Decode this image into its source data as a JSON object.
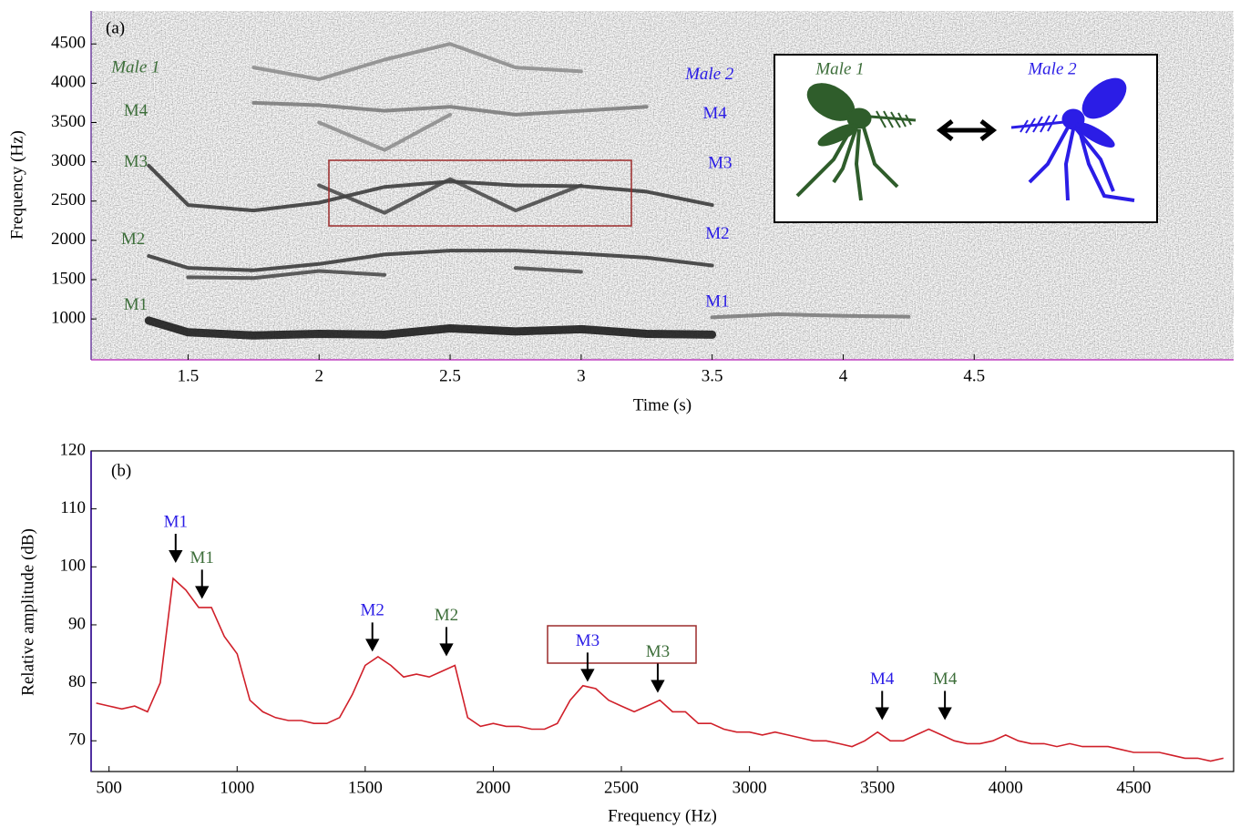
{
  "chart_data": [
    {
      "type": "spectrogram",
      "label": "(a)",
      "x_label": "Time (s)",
      "y_label": "Frequency (Hz)",
      "xlim": [
        1.13,
        5.49
      ],
      "ylim": [
        480,
        4920
      ],
      "xticks": [
        1.5,
        2,
        2.5,
        3,
        3.5,
        4,
        4.5
      ],
      "yticks": [
        1000,
        1500,
        2000,
        2500,
        3000,
        3500,
        4000,
        4500
      ],
      "x": [
        1.35,
        1.5,
        1.75,
        2.0,
        2.25,
        2.5,
        2.75,
        3.0,
        3.25,
        3.5,
        3.75,
        4.0,
        4.25
      ],
      "series": [
        {
          "color": "#111111",
          "values": [
            980,
            830,
            790,
            810,
            800,
            880,
            840,
            870,
            810,
            800,
            null,
            null,
            null
          ]
        },
        {
          "color": "#777777",
          "values": [
            null,
            null,
            null,
            null,
            null,
            null,
            null,
            null,
            null,
            1020,
            1060,
            1040,
            1030
          ]
        },
        {
          "color": "#333333",
          "values": [
            1800,
            1650,
            1620,
            1700,
            1820,
            1870,
            1870,
            1830,
            1780,
            1680,
            null,
            null,
            null
          ]
        },
        {
          "color": "#444444",
          "values": [
            null,
            1530,
            1520,
            1610,
            1560,
            null,
            1650,
            1600,
            null,
            null,
            null,
            null,
            null
          ]
        },
        {
          "color": "#333333",
          "values": [
            2950,
            2450,
            2380,
            2480,
            2680,
            2750,
            2700,
            2690,
            2620,
            2450,
            null,
            null,
            null
          ]
        },
        {
          "color": "#444444",
          "values": [
            null,
            null,
            null,
            2700,
            2350,
            2780,
            2380,
            2700,
            null,
            null,
            null,
            null,
            null
          ]
        },
        {
          "color": "#777777",
          "values": [
            null,
            null,
            3750,
            3720,
            3650,
            3700,
            3600,
            3650,
            3700,
            null,
            null,
            null,
            null
          ]
        },
        {
          "color": "#888888",
          "values": [
            null,
            null,
            4200,
            4050,
            4300,
            4500,
            4200,
            4150,
            null,
            null,
            null,
            null,
            null
          ]
        },
        {
          "color": "#888888",
          "values": [
            null,
            null,
            null,
            3500,
            3150,
            3600,
            null,
            null,
            null,
            null,
            null,
            null,
            null
          ]
        }
      ],
      "annotations": [
        {
          "text": "Male 1",
          "x": 1.3,
          "y": 4190,
          "color": "#3d6e3a",
          "italic": true
        },
        {
          "text": "M4",
          "x": 1.3,
          "y": 3640,
          "color": "#3d6e3a"
        },
        {
          "text": "M3",
          "x": 1.3,
          "y": 2990,
          "color": "#3d6e3a"
        },
        {
          "text": "M2",
          "x": 1.29,
          "y": 2000,
          "color": "#3d6e3a"
        },
        {
          "text": "M1",
          "x": 1.3,
          "y": 1170,
          "color": "#3d6e3a"
        },
        {
          "text": "Male 2",
          "x": 3.49,
          "y": 4100,
          "color": "#2b1de6",
          "italic": true
        },
        {
          "text": "M4",
          "x": 3.51,
          "y": 3600,
          "color": "#2b1de6"
        },
        {
          "text": "M3",
          "x": 3.53,
          "y": 2970,
          "color": "#2b1de6"
        },
        {
          "text": "M2",
          "x": 3.52,
          "y": 2070,
          "color": "#2b1de6"
        },
        {
          "text": "M1",
          "x": 3.52,
          "y": 1210,
          "color": "#2b1de6"
        }
      ],
      "inset_labels": [
        {
          "text": "Male 1",
          "color": "#3d6e3a"
        },
        {
          "text": "Male 2",
          "color": "#2b1de6"
        }
      ]
    },
    {
      "type": "line",
      "label": "(b)",
      "x_label": "Frequency (Hz)",
      "y_label": "Relative amplitude (dB)",
      "xlim": [
        430,
        4890
      ],
      "ylim": [
        64.7,
        120
      ],
      "xticks": [
        500,
        1000,
        1500,
        2000,
        2500,
        3000,
        3500,
        4000,
        4500
      ],
      "yticks": [
        70,
        80,
        90,
        100,
        110,
        120
      ],
      "x": [
        450,
        500,
        550,
        600,
        650,
        700,
        750,
        800,
        850,
        900,
        950,
        1000,
        1050,
        1100,
        1150,
        1200,
        1250,
        1300,
        1350,
        1400,
        1450,
        1500,
        1550,
        1600,
        1650,
        1700,
        1750,
        1800,
        1850,
        1900,
        1950,
        2000,
        2050,
        2100,
        2150,
        2200,
        2250,
        2300,
        2350,
        2400,
        2450,
        2500,
        2550,
        2600,
        2650,
        2700,
        2750,
        2800,
        2850,
        2900,
        2950,
        3000,
        3050,
        3100,
        3150,
        3200,
        3250,
        3300,
        3350,
        3400,
        3450,
        3500,
        3550,
        3600,
        3650,
        3700,
        3750,
        3800,
        3850,
        3900,
        3950,
        4000,
        4050,
        4100,
        4150,
        4200,
        4250,
        4300,
        4350,
        4400,
        4450,
        4500,
        4550,
        4600,
        4650,
        4700,
        4750,
        4800,
        4850
      ],
      "series": [
        {
          "color": "#d0202a",
          "values": [
            76.5,
            76,
            75.5,
            76,
            75,
            80,
            98,
            96,
            93,
            93,
            88,
            85,
            77,
            75,
            74,
            73.5,
            73.5,
            73,
            73,
            74,
            78,
            83,
            84.5,
            83,
            81,
            81.5,
            81,
            82,
            83,
            74,
            72.5,
            73,
            72.5,
            72.5,
            72,
            72,
            73,
            77,
            79.5,
            79,
            77,
            76,
            75,
            76,
            77,
            75,
            75,
            73,
            73,
            72,
            71.5,
            71.5,
            71,
            71.5,
            71,
            70.5,
            70,
            70,
            69.5,
            69,
            70,
            71.5,
            70,
            70,
            71,
            72,
            71,
            70,
            69.5,
            69.5,
            70,
            71,
            70,
            69.5,
            69.5,
            69,
            69.5,
            69,
            69,
            69,
            68.5,
            68,
            68,
            68,
            67.5,
            67,
            67,
            66.5,
            67
          ]
        }
      ],
      "annotations": [
        {
          "text": "M1",
          "x": 760,
          "y": 101,
          "color": "#2b1de6"
        },
        {
          "text": "M1",
          "x": 863,
          "y": 94.8,
          "color": "#3d6e3a"
        },
        {
          "text": "M2",
          "x": 1528,
          "y": 85.7,
          "color": "#2b1de6"
        },
        {
          "text": "M2",
          "x": 1817,
          "y": 84.9,
          "color": "#3d6e3a"
        },
        {
          "text": "M3",
          "x": 2368,
          "y": 80.5,
          "color": "#2b1de6"
        },
        {
          "text": "M3",
          "x": 2642,
          "y": 78.6,
          "color": "#3d6e3a"
        },
        {
          "text": "M4",
          "x": 3518,
          "y": 73.9,
          "color": "#2b1de6"
        },
        {
          "text": "M4",
          "x": 3763,
          "y": 73.9,
          "color": "#3d6e3a"
        }
      ]
    }
  ]
}
